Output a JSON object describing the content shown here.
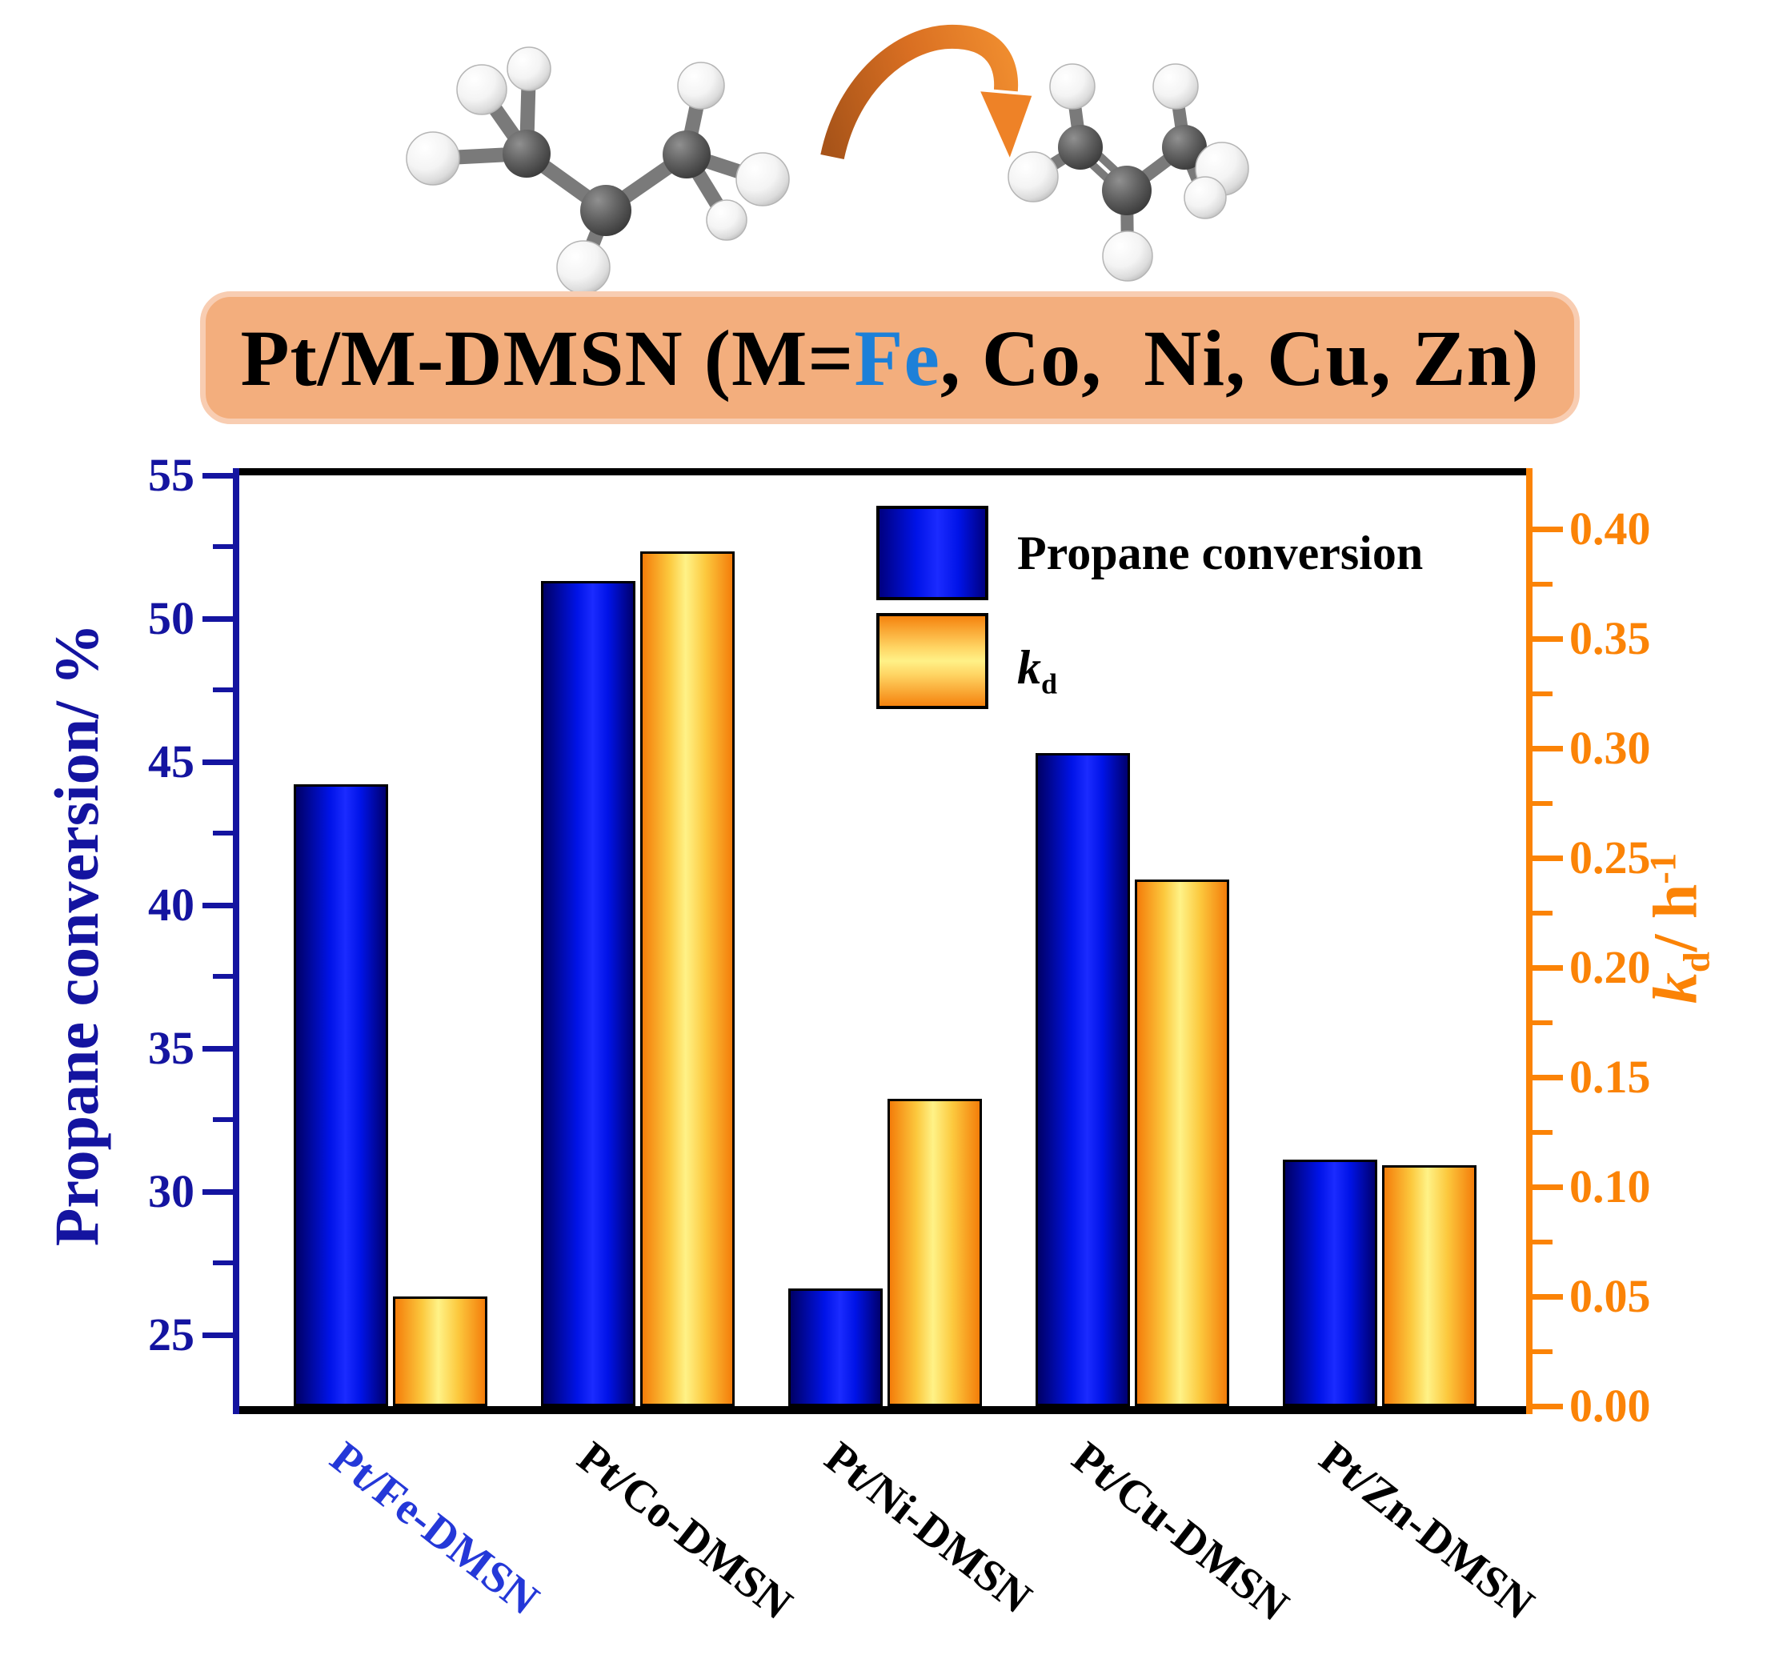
{
  "banner": {
    "prefix": "Pt/M-DMSN (M=",
    "metal": "Fe",
    "suffix": ", Co,  Ni, Cu, Zn)",
    "background": "#f3ae7d",
    "metal_color": "#1d80d8"
  },
  "illustration": {
    "left_molecule": "propane",
    "right_molecule": "propene",
    "arrow_color": "#e0762a"
  },
  "chart_data": {
    "type": "bar",
    "title": "",
    "categories": [
      "Pt/Fe-DMSN",
      "Pt/Co-DMSN",
      "Pt/Ni-DMSN",
      "Pt/Cu-DMSN",
      "Pt/Zn-DMSN"
    ],
    "category_label_colors": [
      "#2438d8",
      "#000000",
      "#000000",
      "#000000",
      "#000000"
    ],
    "series": [
      {
        "name": "Propane conversion",
        "axis": "left",
        "color_style": "blue-gradient",
        "values": [
          44.2,
          51.3,
          26.6,
          45.3,
          31.1
        ]
      },
      {
        "name": "kd",
        "axis": "right",
        "color_style": "gold-gradient",
        "values": [
          0.05,
          0.39,
          0.14,
          0.24,
          0.11
        ]
      }
    ],
    "left_axis": {
      "title": "Propane conversion/ %",
      "min": 22.5,
      "max": 55,
      "tick_values": [
        25,
        30,
        35,
        40,
        45,
        50,
        55
      ],
      "tick_labels": [
        "25",
        "30",
        "35",
        "40",
        "45",
        "50",
        "55"
      ],
      "minor_ticks": [
        27.5,
        32.5,
        37.5,
        42.5,
        47.5,
        52.5
      ],
      "color": "#1414a0"
    },
    "right_axis": {
      "title_parts": {
        "var": "k",
        "sub": "d",
        "mid": "/ h",
        "sup": "-1"
      },
      "min": 0,
      "max": 0.4245,
      "tick_values": [
        0,
        0.05,
        0.1,
        0.15,
        0.2,
        0.25,
        0.3,
        0.35,
        0.4
      ],
      "tick_labels": [
        "0.00",
        "0.05",
        "0.10",
        "0.15",
        "0.20",
        "0.25",
        "0.30",
        "0.35",
        "0.40"
      ],
      "minor_ticks": [
        0.025,
        0.075,
        0.125,
        0.175,
        0.225,
        0.275,
        0.325,
        0.375
      ],
      "color": "#fb8306"
    },
    "legend": {
      "position": "top-right-inside",
      "items": [
        {
          "label": "Propane conversion",
          "swatch": "blue"
        },
        {
          "label_parts": {
            "var": "k",
            "sub": "d"
          },
          "swatch": "gold"
        }
      ]
    },
    "grid": false
  }
}
